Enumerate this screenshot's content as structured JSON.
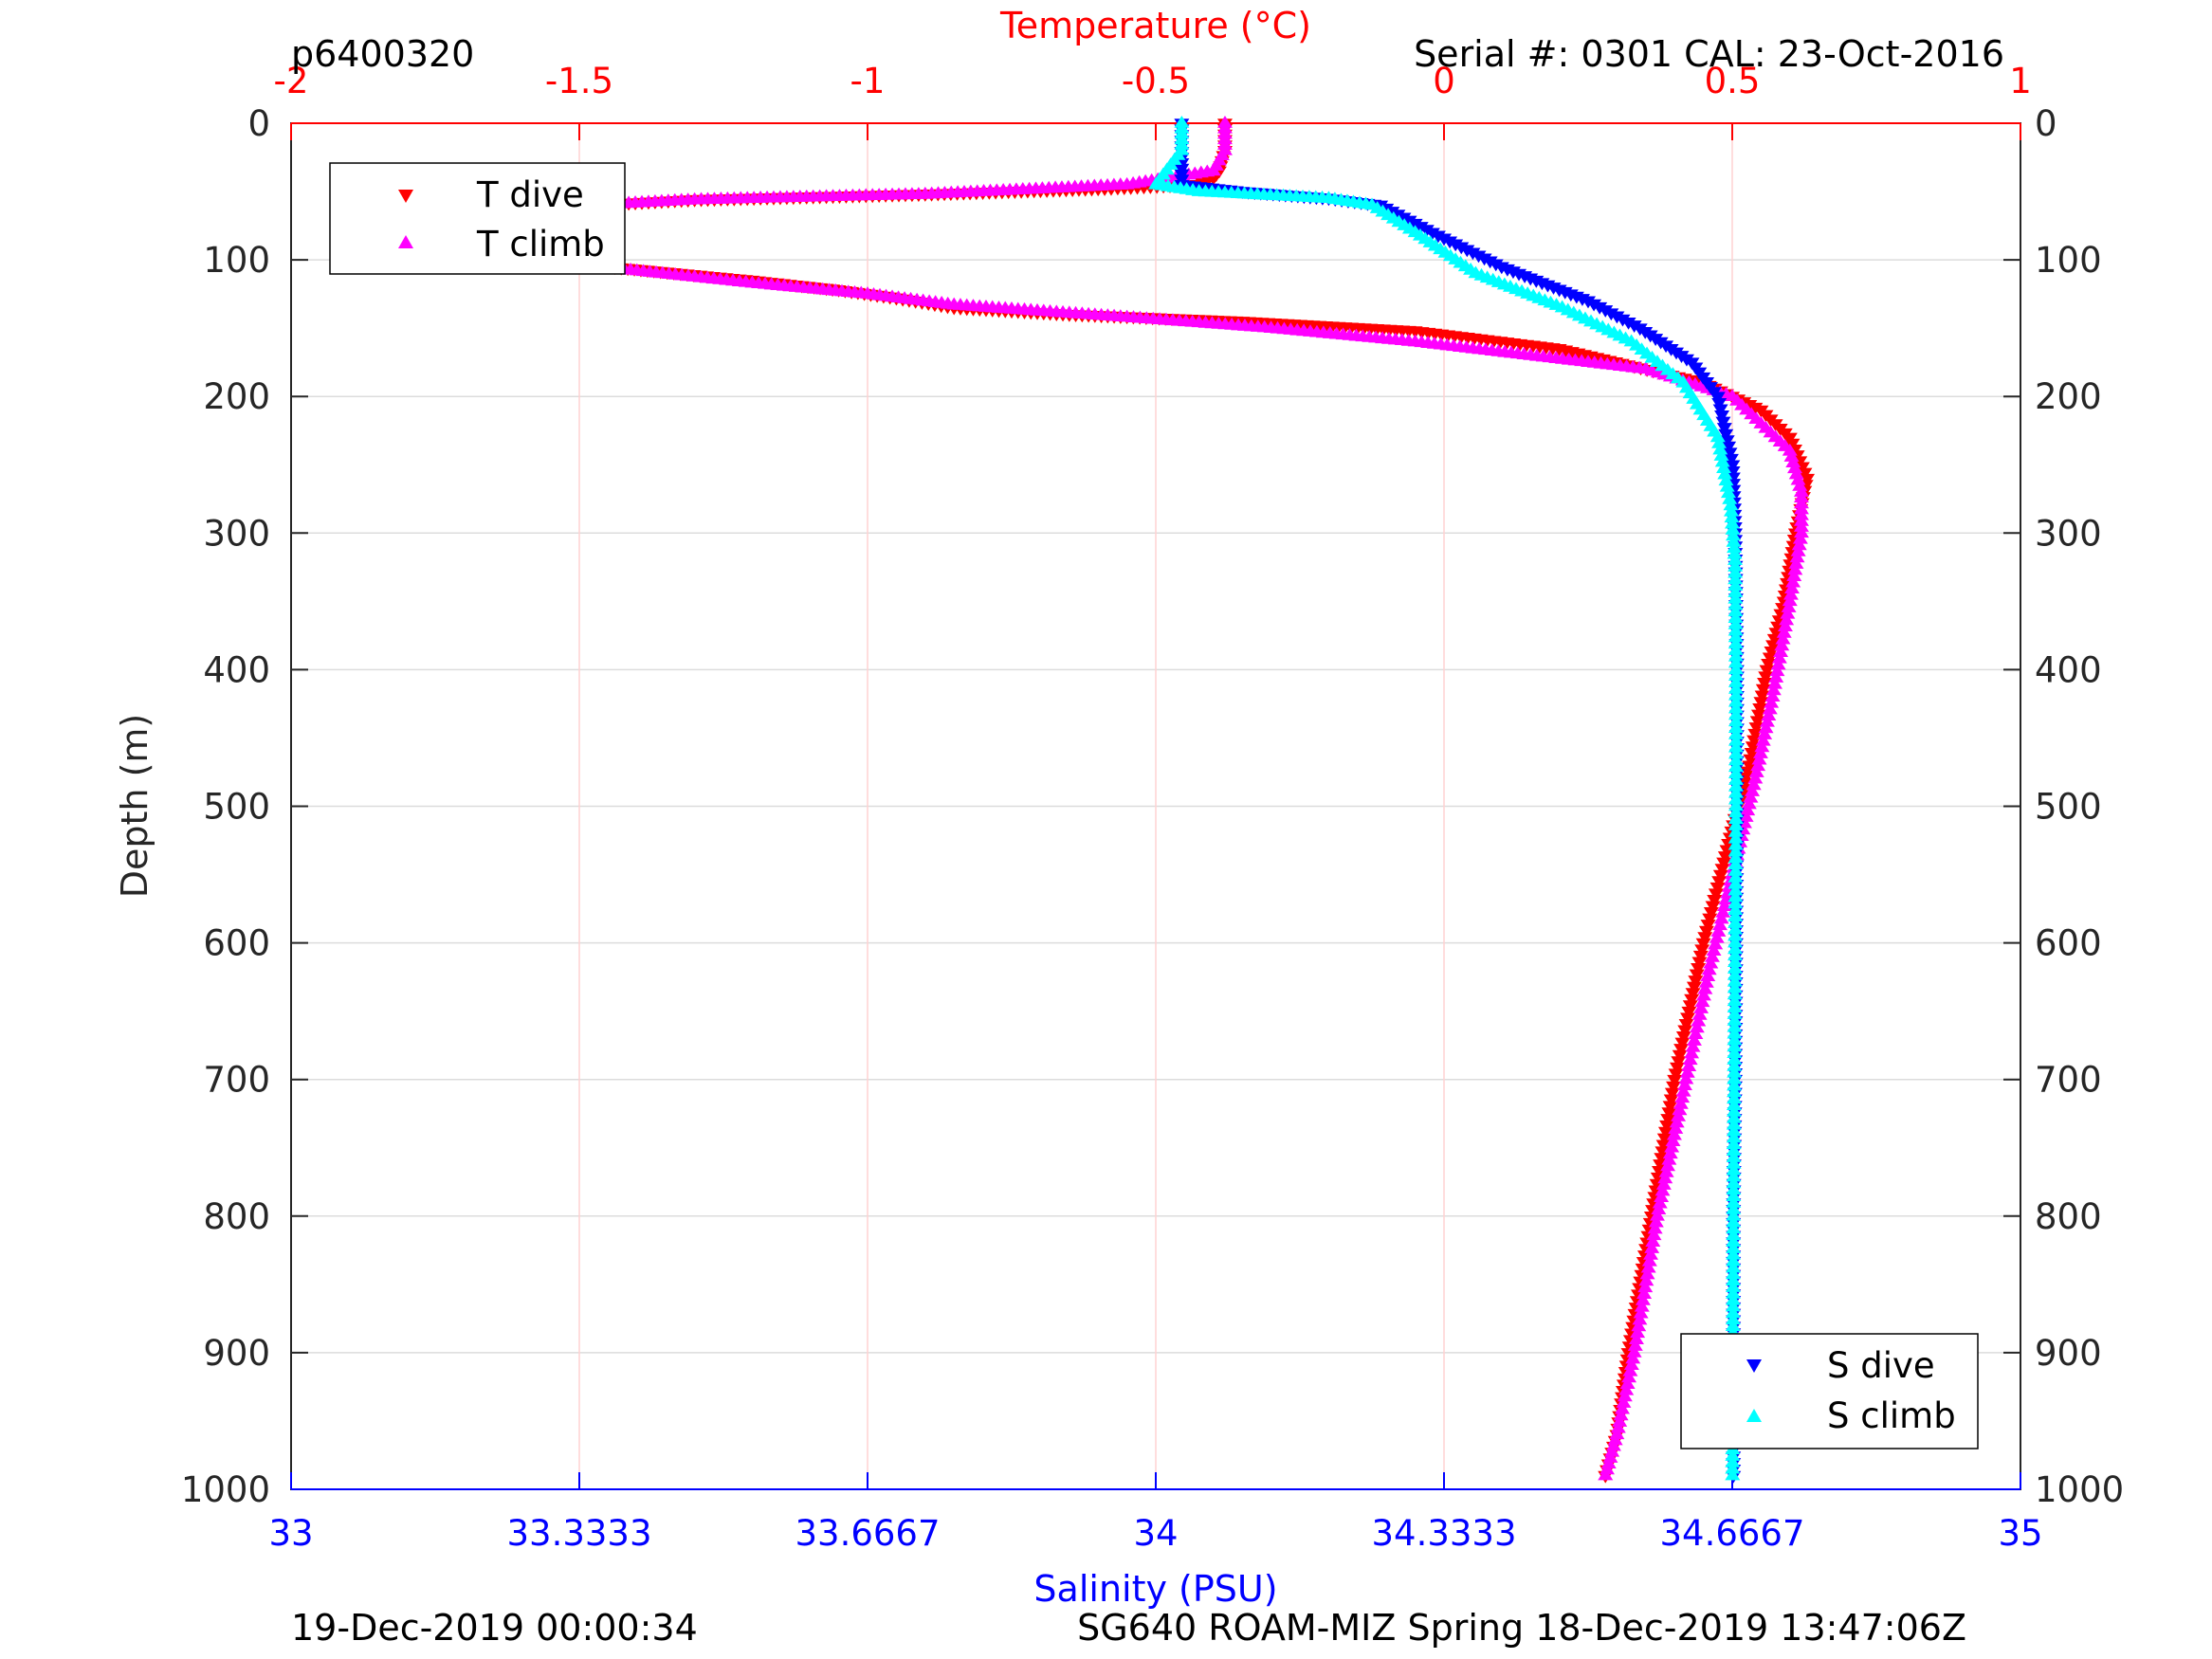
{
  "header": {
    "left_id": "p6400320",
    "serial": "Serial #: 0301  CAL: 23-Oct-2016"
  },
  "footer": {
    "left": "19-Dec-2019 00:00:34",
    "right": "SG640 ROAM-MIZ Spring 18-Dec-2019 13:47:06Z"
  },
  "colors": {
    "t_dive": "#ff0000",
    "t_climb": "#ff00ff",
    "s_dive": "#0000ff",
    "s_climb": "#00ffff",
    "temp_axis": "#ff0000",
    "sal_axis": "#0000ff"
  },
  "chart_data": {
    "type": "scatter",
    "y_reversed": true,
    "grid": true,
    "ylabel": "Depth (m)",
    "ylim": [
      0,
      1000
    ],
    "yticks": [
      "0",
      "100",
      "200",
      "300",
      "400",
      "500",
      "600",
      "700",
      "800",
      "900",
      "1000"
    ],
    "temperature_axis": {
      "label": "Temperature (°C)",
      "position": "top",
      "lim": [
        -2,
        1
      ],
      "ticks": [
        "-2",
        "-1.5",
        "-1",
        "-0.5",
        "0",
        "0.5",
        "1"
      ]
    },
    "salinity_axis": {
      "label": "Salinity (PSU)",
      "position": "bottom",
      "lim": [
        33,
        35
      ],
      "ticks": [
        "33",
        "33.3333",
        "33.6667",
        "34",
        "34.3333",
        "34.6667",
        "35"
      ]
    },
    "legends": [
      {
        "placement": "top-left",
        "entries": [
          "T dive",
          "T climb"
        ]
      },
      {
        "placement": "bottom-right",
        "entries": [
          "S dive",
          "S climb"
        ]
      }
    ],
    "series": [
      {
        "name": "T dive",
        "axis": "temperature",
        "marker": "triangle-down",
        "x": [
          -0.38,
          -0.38,
          -0.39,
          -0.4,
          -0.43,
          -0.6,
          -0.9,
          -1.3,
          -1.7,
          -1.8,
          -1.75,
          -1.65,
          -1.45,
          -1.2,
          -1.05,
          -0.95,
          -0.85,
          -0.65,
          -0.35,
          -0.05,
          0.2,
          0.45,
          0.55,
          0.6,
          0.63,
          0.61,
          0.59,
          0.56,
          0.53,
          0.51,
          0.48,
          0.45,
          0.4,
          0.36,
          0.32,
          0.3,
          0.28
        ],
        "y": [
          0,
          20,
          35,
          40,
          45,
          48,
          52,
          56,
          65,
          75,
          85,
          95,
          105,
          115,
          122,
          128,
          135,
          140,
          145,
          152,
          165,
          190,
          210,
          230,
          260,
          300,
          350,
          400,
          470,
          500,
          550,
          600,
          700,
          800,
          900,
          960,
          990
        ]
      },
      {
        "name": "T climb",
        "axis": "temperature",
        "marker": "triangle-up",
        "x": [
          -0.38,
          -0.38,
          -0.4,
          -0.55,
          -0.9,
          -1.3,
          -1.7,
          -1.8,
          -1.76,
          -1.6,
          -1.4,
          -1.2,
          -1.0,
          -0.85,
          -0.55,
          -0.3,
          -0.05,
          0.15,
          0.35,
          0.5,
          0.6,
          0.62,
          0.62,
          0.6,
          0.57,
          0.54,
          0.5,
          0.46,
          0.42,
          0.37,
          0.33,
          0.3,
          0.28
        ],
        "y": [
          0,
          20,
          35,
          45,
          52,
          56,
          65,
          75,
          85,
          98,
          108,
          117,
          125,
          133,
          142,
          150,
          160,
          170,
          180,
          200,
          240,
          270,
          300,
          350,
          420,
          480,
          550,
          620,
          700,
          800,
          900,
          960,
          990
        ]
      },
      {
        "name": "S dive",
        "axis": "salinity",
        "marker": "triangle-down",
        "x": [
          34.03,
          34.03,
          34.03,
          34.1,
          34.2,
          34.26,
          34.32,
          34.4,
          34.5,
          34.56,
          34.62,
          34.65,
          34.667,
          34.67,
          34.672,
          34.672,
          34.671,
          34.67,
          34.668,
          34.668
        ],
        "y": [
          0,
          25,
          45,
          50,
          55,
          60,
          80,
          105,
          130,
          150,
          175,
          200,
          250,
          300,
          400,
          500,
          600,
          700,
          800,
          990
        ]
      },
      {
        "name": "S climb",
        "axis": "salinity",
        "marker": "triangle-up",
        "x": [
          34.03,
          34.03,
          34.0,
          34.05,
          34.2,
          34.25,
          34.3,
          34.37,
          34.47,
          34.55,
          34.61,
          34.65,
          34.665,
          34.67,
          34.671,
          34.671,
          34.67,
          34.669,
          34.668,
          34.667
        ],
        "y": [
          0,
          20,
          45,
          50,
          55,
          60,
          80,
          110,
          135,
          160,
          190,
          230,
          280,
          320,
          400,
          500,
          600,
          700,
          800,
          990
        ]
      }
    ]
  }
}
